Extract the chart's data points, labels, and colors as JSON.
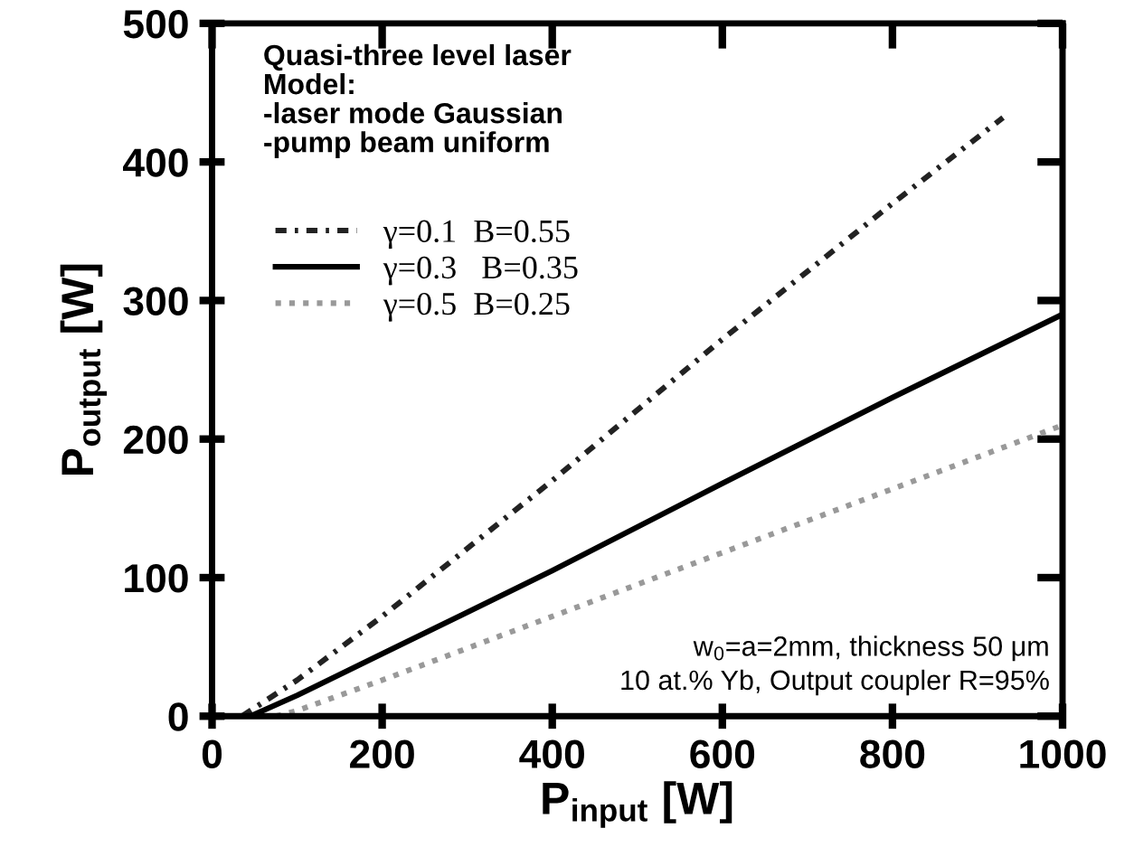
{
  "chart_data": {
    "type": "line",
    "xlabel": "P$_{input}$ [W]",
    "ylabel": "P$_{output}$ [W]",
    "xlim": [
      0,
      1000
    ],
    "ylim": [
      0,
      500
    ],
    "xticks": [
      0,
      200,
      400,
      600,
      800,
      1000
    ],
    "yticks": [
      0,
      100,
      200,
      300,
      400,
      500
    ],
    "grid": false,
    "legend": "top left",
    "marker": "none",
    "series": [
      {
        "name": "γ=0.1  B=0.55",
        "color": "#222222",
        "line_style": "dashdot",
        "x": [
          35,
          100,
          200,
          400,
          600,
          800,
          930
        ],
        "values": [
          0,
          26,
          72,
          170,
          272,
          370,
          432
        ]
      },
      {
        "name": "γ=0.3   B=0.35",
        "color": "#000000",
        "line_style": "solid",
        "x": [
          45,
          100,
          200,
          400,
          600,
          800,
          1000
        ],
        "values": [
          0,
          15,
          45,
          105,
          168,
          230,
          290
        ]
      },
      {
        "name": "γ=0.5  B=0.25",
        "color": "#999999",
        "line_style": "dotted",
        "x": [
          75,
          100,
          200,
          400,
          600,
          800,
          1000
        ],
        "values": [
          0,
          4,
          26,
          72,
          118,
          164,
          210
        ]
      }
    ],
    "annotations": [
      "Quasi-three level laser\nModel:\n-laser mode Gaussian\n-pump beam uniform",
      "w$_{0}$=a=2mm, thickness 50 μm\n10 at.% Yb, Output coupler R=95%"
    ]
  }
}
